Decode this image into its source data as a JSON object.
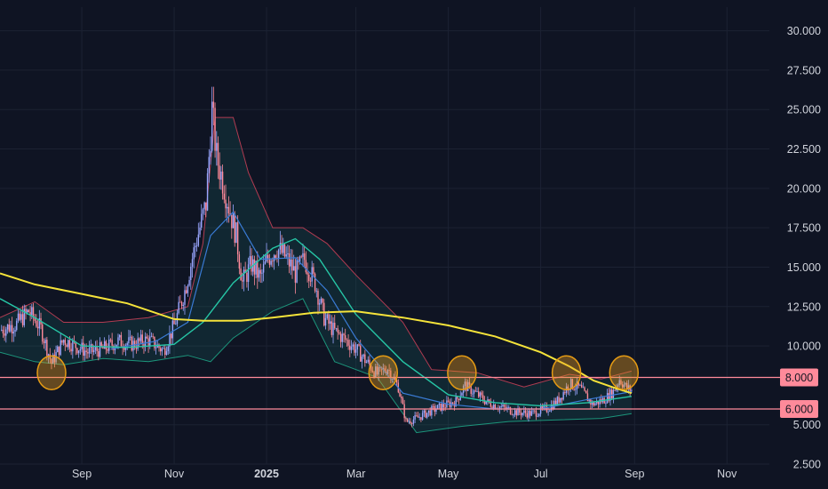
{
  "colors": {
    "background": "#0f1423",
    "grid": "#1c2233",
    "up": "#9aa6ff",
    "down": "#ff8a9a",
    "ma_long": "#f5e33a",
    "ma_mid": "#26c6a6",
    "ma_fast": "#3a7bd5",
    "band_upper": "#d9435b",
    "band_lower": "#1faa8a",
    "band_fill": "#1d6f6a",
    "level_line": "#ff8a9a",
    "circle_fill": "#f0a020",
    "circle_stroke": "#e59b14",
    "axis_text": "#d1d4dc"
  },
  "chart_data": {
    "type": "candlestick",
    "y_axis": {
      "position": "right",
      "range": [
        2.5,
        31.5
      ],
      "ticks": [
        {
          "value": 30,
          "label": "30.000"
        },
        {
          "value": 27.5,
          "label": "27.500"
        },
        {
          "value": 25,
          "label": "25.000"
        },
        {
          "value": 22.5,
          "label": "22.500"
        },
        {
          "value": 20,
          "label": "20.000"
        },
        {
          "value": 17.5,
          "label": "17.500"
        },
        {
          "value": 15,
          "label": "15.000"
        },
        {
          "value": 12.5,
          "label": "12.500"
        },
        {
          "value": 10,
          "label": "10.000"
        },
        {
          "value": 5,
          "label": "5.000"
        },
        {
          "value": 2.5,
          "label": "2.500"
        }
      ]
    },
    "x_axis": {
      "range": [
        "2024-07-09",
        "2025-11-29"
      ],
      "ticks": [
        {
          "date": "2024-09-01",
          "label": "Sep",
          "bold": false
        },
        {
          "date": "2024-11-01",
          "label": "Nov",
          "bold": false
        },
        {
          "date": "2025-01-01",
          "label": "2025",
          "bold": true
        },
        {
          "date": "2025-03-01",
          "label": "Mar",
          "bold": false
        },
        {
          "date": "2025-05-01",
          "label": "May",
          "bold": false
        },
        {
          "date": "2025-07-01",
          "label": "Jul",
          "bold": false
        },
        {
          "date": "2025-09-01",
          "label": "Sep",
          "bold": false
        },
        {
          "date": "2025-11-01",
          "label": "Nov",
          "bold": false
        }
      ]
    },
    "price_path": [
      [
        "2024-07-09",
        11.0
      ],
      [
        "2024-07-20",
        11.4
      ],
      [
        "2024-07-28",
        12.2
      ],
      [
        "2024-08-05",
        11.1
      ],
      [
        "2024-08-12",
        8.9
      ],
      [
        "2024-08-20",
        10.4
      ],
      [
        "2024-08-28",
        10.0
      ],
      [
        "2024-09-05",
        9.6
      ],
      [
        "2024-09-15",
        9.8
      ],
      [
        "2024-09-25",
        10.3
      ],
      [
        "2024-10-05",
        10.1
      ],
      [
        "2024-10-15",
        10.4
      ],
      [
        "2024-10-25",
        9.7
      ],
      [
        "2024-11-01",
        11.3
      ],
      [
        "2024-11-08",
        13.5
      ],
      [
        "2024-11-15",
        16.4
      ],
      [
        "2024-11-22",
        19.0
      ],
      [
        "2024-11-26",
        25.0
      ],
      [
        "2024-11-29",
        22.0
      ],
      [
        "2024-12-03",
        20.5
      ],
      [
        "2024-12-08",
        18.5
      ],
      [
        "2024-12-12",
        17.0
      ],
      [
        "2024-12-16",
        14.0
      ],
      [
        "2024-12-22",
        15.2
      ],
      [
        "2024-12-28",
        14.3
      ],
      [
        "2025-01-02",
        15.6
      ],
      [
        "2025-01-08",
        16.2
      ],
      [
        "2025-01-14",
        15.6
      ],
      [
        "2025-01-20",
        14.6
      ],
      [
        "2025-01-26",
        15.5
      ],
      [
        "2025-02-02",
        14.0
      ],
      [
        "2025-02-08",
        11.8
      ],
      [
        "2025-02-14",
        11.0
      ],
      [
        "2025-02-22",
        10.4
      ],
      [
        "2025-03-01",
        9.8
      ],
      [
        "2025-03-08",
        9.0
      ],
      [
        "2025-03-15",
        8.2
      ],
      [
        "2025-03-22",
        8.6
      ],
      [
        "2025-03-29",
        7.4
      ],
      [
        "2025-04-03",
        5.2
      ],
      [
        "2025-04-10",
        5.4
      ],
      [
        "2025-04-20",
        5.9
      ],
      [
        "2025-04-28",
        6.2
      ],
      [
        "2025-05-06",
        6.5
      ],
      [
        "2025-05-12",
        7.5
      ],
      [
        "2025-05-19",
        7.0
      ],
      [
        "2025-05-27",
        6.4
      ],
      [
        "2025-06-05",
        6.1
      ],
      [
        "2025-06-15",
        5.8
      ],
      [
        "2025-06-25",
        5.7
      ],
      [
        "2025-07-05",
        6.0
      ],
      [
        "2025-07-12",
        6.5
      ],
      [
        "2025-07-20",
        7.6
      ],
      [
        "2025-07-27",
        7.3
      ],
      [
        "2025-08-04",
        6.3
      ],
      [
        "2025-08-12",
        6.6
      ],
      [
        "2025-08-18",
        7.1
      ],
      [
        "2025-08-22",
        7.9
      ],
      [
        "2025-08-27",
        7.3
      ],
      [
        "2025-08-30",
        7.2
      ]
    ],
    "ma_long": [
      [
        "2024-07-09",
        14.6
      ],
      [
        "2024-08-01",
        13.9
      ],
      [
        "2024-09-01",
        13.3
      ],
      [
        "2024-10-01",
        12.7
      ],
      [
        "2024-11-01",
        11.7
      ],
      [
        "2024-11-20",
        11.6
      ],
      [
        "2024-12-15",
        11.6
      ],
      [
        "2025-01-05",
        11.8
      ],
      [
        "2025-02-01",
        12.1
      ],
      [
        "2025-03-01",
        12.2
      ],
      [
        "2025-04-01",
        11.8
      ],
      [
        "2025-05-01",
        11.3
      ],
      [
        "2025-06-01",
        10.6
      ],
      [
        "2025-07-01",
        9.6
      ],
      [
        "2025-07-20",
        8.7
      ],
      [
        "2025-08-05",
        7.8
      ],
      [
        "2025-08-20",
        7.3
      ],
      [
        "2025-08-30",
        7.0
      ]
    ],
    "ma_mid": [
      [
        "2024-07-09",
        13.0
      ],
      [
        "2024-08-01",
        11.8
      ],
      [
        "2024-09-01",
        10.0
      ],
      [
        "2024-10-01",
        9.9
      ],
      [
        "2024-11-01",
        10.1
      ],
      [
        "2024-11-20",
        11.5
      ],
      [
        "2024-12-10",
        14.0
      ],
      [
        "2025-01-05",
        16.2
      ],
      [
        "2025-01-20",
        16.8
      ],
      [
        "2025-02-05",
        15.5
      ],
      [
        "2025-03-01",
        12.0
      ],
      [
        "2025-04-01",
        9.0
      ],
      [
        "2025-05-01",
        6.9
      ],
      [
        "2025-06-01",
        6.4
      ],
      [
        "2025-07-01",
        6.2
      ],
      [
        "2025-08-01",
        6.4
      ],
      [
        "2025-08-30",
        6.8
      ]
    ],
    "ma_fast": [
      [
        "2024-09-20",
        9.8
      ],
      [
        "2024-10-20",
        10.3
      ],
      [
        "2024-11-10",
        11.5
      ],
      [
        "2024-11-25",
        17.0
      ],
      [
        "2024-12-10",
        18.5
      ],
      [
        "2024-12-28",
        15.5
      ],
      [
        "2025-01-20",
        15.6
      ],
      [
        "2025-02-10",
        13.5
      ],
      [
        "2025-03-01",
        10.5
      ],
      [
        "2025-04-01",
        7.0
      ],
      [
        "2025-05-01",
        6.3
      ],
      [
        "2025-06-01",
        6.0
      ],
      [
        "2025-07-01",
        6.0
      ],
      [
        "2025-08-01",
        6.6
      ],
      [
        "2025-08-30",
        7.1
      ]
    ],
    "band_upper": [
      [
        "2024-07-09",
        11.8
      ],
      [
        "2024-08-01",
        12.8
      ],
      [
        "2024-08-20",
        11.5
      ],
      [
        "2024-09-15",
        11.5
      ],
      [
        "2024-10-15",
        11.8
      ],
      [
        "2024-11-10",
        12.5
      ],
      [
        "2024-11-20",
        16.5
      ],
      [
        "2024-11-28",
        24.5
      ],
      [
        "2024-12-10",
        24.5
      ],
      [
        "2024-12-20",
        21.0
      ],
      [
        "2025-01-05",
        17.5
      ],
      [
        "2025-01-25",
        17.5
      ],
      [
        "2025-02-10",
        16.5
      ],
      [
        "2025-03-01",
        14.5
      ],
      [
        "2025-04-01",
        11.5
      ],
      [
        "2025-04-20",
        8.5
      ],
      [
        "2025-05-20",
        8.3
      ],
      [
        "2025-06-20",
        7.4
      ],
      [
        "2025-07-20",
        8.2
      ],
      [
        "2025-08-10",
        7.9
      ],
      [
        "2025-08-30",
        8.4
      ]
    ],
    "band_lower": [
      [
        "2024-07-09",
        9.6
      ],
      [
        "2024-08-01",
        9.0
      ],
      [
        "2024-08-20",
        8.8
      ],
      [
        "2024-09-15",
        9.2
      ],
      [
        "2024-10-15",
        9.0
      ],
      [
        "2024-11-10",
        9.4
      ],
      [
        "2024-11-25",
        9.0
      ],
      [
        "2024-12-10",
        10.5
      ],
      [
        "2025-01-05",
        12.2
      ],
      [
        "2025-01-25",
        13.0
      ],
      [
        "2025-02-15",
        9.0
      ],
      [
        "2025-03-15",
        8.0
      ],
      [
        "2025-04-10",
        4.5
      ],
      [
        "2025-05-10",
        4.9
      ],
      [
        "2025-06-10",
        5.2
      ],
      [
        "2025-07-10",
        5.3
      ],
      [
        "2025-08-10",
        5.4
      ],
      [
        "2025-08-30",
        5.7
      ]
    ],
    "horizontal_levels": [
      {
        "value": 8.0,
        "label": "8.000"
      },
      {
        "value": 6.0,
        "label": "6.000"
      }
    ],
    "highlight_circles": [
      {
        "date": "2024-08-12",
        "value": 8.3
      },
      {
        "date": "2025-03-19",
        "value": 8.3
      },
      {
        "date": "2025-05-10",
        "value": 8.3
      },
      {
        "date": "2025-07-18",
        "value": 8.3
      },
      {
        "date": "2025-08-25",
        "value": 8.3
      }
    ]
  }
}
